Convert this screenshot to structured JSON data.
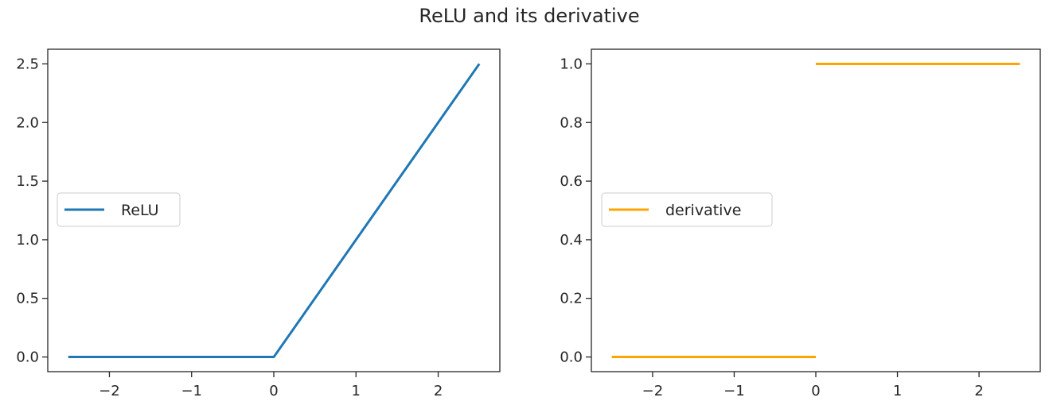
{
  "figure": {
    "suptitle": "ReLU and its derivative"
  },
  "chart_data": [
    {
      "type": "line",
      "title": "",
      "xlabel": "",
      "ylabel": "",
      "xlim": [
        -2.75,
        2.75
      ],
      "ylim": [
        -0.125,
        2.625
      ],
      "grid": false,
      "legend": {
        "location": "center-left"
      },
      "xticks": [
        -2,
        -1,
        0,
        1,
        2
      ],
      "xtick_labels": [
        "−2",
        "−1",
        "0",
        "1",
        "2"
      ],
      "yticks": [
        0,
        0.5,
        1,
        1.5,
        2,
        2.5
      ],
      "ytick_labels": [
        "0.0",
        "0.5",
        "1.0",
        "1.5",
        "2.0",
        "2.5"
      ],
      "series": [
        {
          "name": "ReLU",
          "color": "#1f77b4",
          "segments": [
            {
              "x": [
                -2.5,
                0,
                2.5
              ],
              "y": [
                0,
                0,
                2.5
              ]
            }
          ]
        }
      ]
    },
    {
      "type": "line",
      "title": "",
      "xlabel": "",
      "ylabel": "",
      "xlim": [
        -2.75,
        2.75
      ],
      "ylim": [
        -0.05,
        1.05
      ],
      "grid": false,
      "legend": {
        "location": "center-left"
      },
      "xticks": [
        -2,
        -1,
        0,
        1,
        2
      ],
      "xtick_labels": [
        "−2",
        "−1",
        "0",
        "1",
        "2"
      ],
      "yticks": [
        0,
        0.2,
        0.4,
        0.6,
        0.8,
        1.0
      ],
      "ytick_labels": [
        "0.0",
        "0.2",
        "0.4",
        "0.6",
        "0.8",
        "1.0"
      ],
      "series": [
        {
          "name": "derivative",
          "color": "#ffa500",
          "segments": [
            {
              "x": [
                -2.5,
                0
              ],
              "y": [
                0,
                0
              ]
            },
            {
              "x": [
                0,
                2.5
              ],
              "y": [
                1,
                1
              ]
            }
          ]
        }
      ]
    }
  ]
}
